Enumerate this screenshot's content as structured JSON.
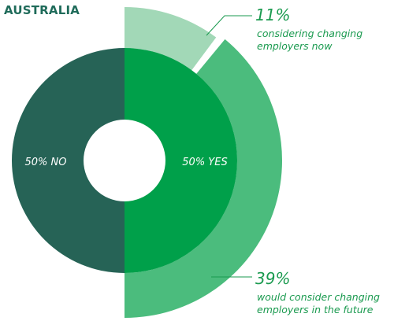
{
  "colors": {
    "title": "#1f6b5a",
    "no": "#266356",
    "yes": "#00a04a",
    "future": "#4bbc7d",
    "now": "#a2d8b7",
    "callout_text": "#1a9a4f",
    "callout_line": "#1a9a4f",
    "inner_text": "#ffffff",
    "background": "#ffffff"
  },
  "chart_data": {
    "type": "pie",
    "title": "AUSTRALIA",
    "inner": {
      "slices": [
        {
          "key": "no",
          "label": "50% NO",
          "value": 50
        },
        {
          "key": "yes",
          "label": "50% YES",
          "value": 50
        }
      ]
    },
    "outer": {
      "slices": [
        {
          "key": "now",
          "value": 11,
          "percent_label": "11%",
          "description": [
            "considering changing",
            "employers now"
          ]
        },
        {
          "key": "future",
          "value": 39,
          "percent_label": "39%",
          "description": [
            "would consider changing",
            "employers in the future"
          ]
        }
      ]
    }
  }
}
